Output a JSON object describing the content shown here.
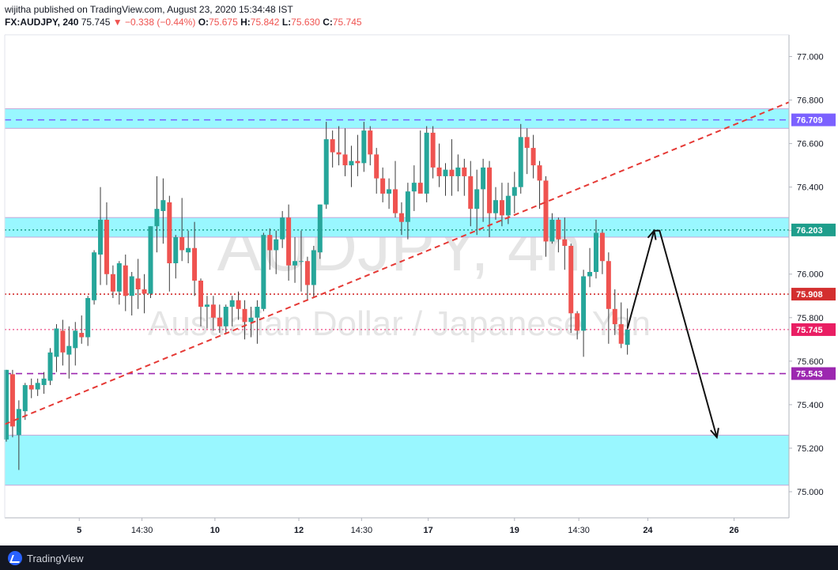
{
  "header": {
    "line1": "wijitha published on TradingView.com, August 23, 2020 15:34:48 IST",
    "symbol": "FX:AUDJPY, 240",
    "last": "75.745",
    "change": "▼ −0.338 (−0.44%)",
    "o_label": "O:",
    "o_value": "75.675",
    "h_label": "H:",
    "h_value": "75.842",
    "l_label": "L:",
    "l_value": "75.630",
    "c_label": "C:",
    "c_value": "75.745"
  },
  "watermark": {
    "symbol": "AUDJPY, 4h",
    "description": "Australian Dollar / Japanese Yen"
  },
  "footer": {
    "brand": "TradingView"
  },
  "colors": {
    "up": "#26a69a",
    "down": "#ef5350",
    "zone": "#99f7ff",
    "purple": "#9c27b0",
    "red_line": "#e53935"
  },
  "chart_data": {
    "type": "candlestick",
    "symbol": "FX:AUDJPY",
    "timeframe": "4h",
    "ylim": [
      74.88,
      77.1
    ],
    "y_ticks": [
      "77.000",
      "76.800",
      "76.600",
      "76.400",
      "76.200",
      "76.000",
      "75.800",
      "75.600",
      "75.400",
      "75.200",
      "75.000"
    ],
    "x_ticks": [
      "5",
      "14:30",
      "10",
      "12",
      "14:30",
      "17",
      "19",
      "14:30",
      "24",
      "26"
    ],
    "x_range": [
      0,
      100
    ],
    "x_tick_positions": [
      9.5,
      17.5,
      26.8,
      37.5,
      45.5,
      54.0,
      65.0,
      73.2,
      82.0,
      93.0
    ],
    "candles": [
      {
        "x": 0.2,
        "o": 75.24,
        "h": 75.56,
        "l": 75.23,
        "c": 75.56
      },
      {
        "x": 1.0,
        "o": 75.54,
        "h": 75.56,
        "l": 75.25,
        "c": 75.3
      },
      {
        "x": 1.8,
        "o": 75.26,
        "h": 75.42,
        "l": 75.1,
        "c": 75.38
      },
      {
        "x": 2.6,
        "o": 75.37,
        "h": 75.5,
        "l": 75.33,
        "c": 75.49
      },
      {
        "x": 3.4,
        "o": 75.49,
        "h": 75.52,
        "l": 75.43,
        "c": 75.47
      },
      {
        "x": 4.2,
        "o": 75.47,
        "h": 75.52,
        "l": 75.44,
        "c": 75.5
      },
      {
        "x": 5.0,
        "o": 75.49,
        "h": 75.55,
        "l": 75.45,
        "c": 75.52
      },
      {
        "x": 5.8,
        "o": 75.51,
        "h": 75.66,
        "l": 75.49,
        "c": 75.64
      },
      {
        "x": 6.6,
        "o": 75.62,
        "h": 75.77,
        "l": 75.55,
        "c": 75.75
      },
      {
        "x": 7.4,
        "o": 75.74,
        "h": 75.79,
        "l": 75.58,
        "c": 75.64
      },
      {
        "x": 8.2,
        "o": 75.63,
        "h": 75.76,
        "l": 75.52,
        "c": 75.67
      },
      {
        "x": 9.0,
        "o": 75.66,
        "h": 75.78,
        "l": 75.58,
        "c": 75.74
      },
      {
        "x": 9.8,
        "o": 75.73,
        "h": 75.81,
        "l": 75.68,
        "c": 75.71
      },
      {
        "x": 10.6,
        "o": 75.71,
        "h": 75.9,
        "l": 75.67,
        "c": 75.89
      },
      {
        "x": 11.4,
        "o": 75.88,
        "h": 76.11,
        "l": 75.86,
        "c": 76.1
      },
      {
        "x": 12.2,
        "o": 76.09,
        "h": 76.4,
        "l": 75.95,
        "c": 76.25
      },
      {
        "x": 13.0,
        "o": 76.25,
        "h": 76.33,
        "l": 75.95,
        "c": 76.0
      },
      {
        "x": 13.8,
        "o": 76.0,
        "h": 76.04,
        "l": 75.89,
        "c": 75.92
      },
      {
        "x": 14.6,
        "o": 75.92,
        "h": 76.06,
        "l": 75.86,
        "c": 76.05
      },
      {
        "x": 15.4,
        "o": 76.04,
        "h": 76.09,
        "l": 75.83,
        "c": 75.9
      },
      {
        "x": 16.2,
        "o": 75.9,
        "h": 76.01,
        "l": 75.81,
        "c": 75.99
      },
      {
        "x": 17.0,
        "o": 75.98,
        "h": 76.07,
        "l": 75.84,
        "c": 75.93
      },
      {
        "x": 17.8,
        "o": 75.93,
        "h": 76.0,
        "l": 75.82,
        "c": 75.91
      },
      {
        "x": 18.6,
        "o": 75.91,
        "h": 76.22,
        "l": 75.89,
        "c": 76.22
      },
      {
        "x": 19.4,
        "o": 76.22,
        "h": 76.45,
        "l": 76.1,
        "c": 76.3
      },
      {
        "x": 20.2,
        "o": 76.29,
        "h": 76.44,
        "l": 76.14,
        "c": 76.34
      },
      {
        "x": 21.0,
        "o": 76.33,
        "h": 76.36,
        "l": 75.92,
        "c": 76.05
      },
      {
        "x": 21.8,
        "o": 76.05,
        "h": 76.18,
        "l": 75.98,
        "c": 76.17
      },
      {
        "x": 22.6,
        "o": 76.17,
        "h": 76.35,
        "l": 76.06,
        "c": 76.11
      },
      {
        "x": 23.4,
        "o": 76.1,
        "h": 76.2,
        "l": 76.05,
        "c": 76.12
      },
      {
        "x": 24.2,
        "o": 76.12,
        "h": 76.24,
        "l": 75.9,
        "c": 75.97
      },
      {
        "x": 25.0,
        "o": 75.97,
        "h": 75.98,
        "l": 75.76,
        "c": 75.85
      },
      {
        "x": 25.8,
        "o": 75.85,
        "h": 75.9,
        "l": 75.75,
        "c": 75.86
      },
      {
        "x": 26.6,
        "o": 75.86,
        "h": 75.9,
        "l": 75.74,
        "c": 75.8
      },
      {
        "x": 27.4,
        "o": 75.8,
        "h": 75.86,
        "l": 75.73,
        "c": 75.76
      },
      {
        "x": 28.2,
        "o": 75.76,
        "h": 75.86,
        "l": 75.73,
        "c": 75.85
      },
      {
        "x": 29.0,
        "o": 75.85,
        "h": 75.9,
        "l": 75.76,
        "c": 75.88
      },
      {
        "x": 29.8,
        "o": 75.88,
        "h": 75.92,
        "l": 75.79,
        "c": 75.84
      },
      {
        "x": 30.6,
        "o": 75.84,
        "h": 75.88,
        "l": 75.7,
        "c": 75.78
      },
      {
        "x": 31.4,
        "o": 75.78,
        "h": 75.85,
        "l": 75.71,
        "c": 75.8
      },
      {
        "x": 32.2,
        "o": 75.8,
        "h": 75.88,
        "l": 75.68,
        "c": 75.85
      },
      {
        "x": 33.0,
        "o": 75.84,
        "h": 76.19,
        "l": 75.83,
        "c": 76.18
      },
      {
        "x": 33.8,
        "o": 76.18,
        "h": 76.21,
        "l": 76.02,
        "c": 76.11
      },
      {
        "x": 34.6,
        "o": 76.11,
        "h": 76.2,
        "l": 76.0,
        "c": 76.16
      },
      {
        "x": 35.4,
        "o": 76.16,
        "h": 76.29,
        "l": 76.12,
        "c": 76.26
      },
      {
        "x": 36.2,
        "o": 76.26,
        "h": 76.32,
        "l": 75.97,
        "c": 76.04
      },
      {
        "x": 37.0,
        "o": 76.04,
        "h": 76.17,
        "l": 75.96,
        "c": 76.06
      },
      {
        "x": 37.8,
        "o": 76.06,
        "h": 76.2,
        "l": 75.92,
        "c": 76.06
      },
      {
        "x": 38.6,
        "o": 76.06,
        "h": 76.08,
        "l": 75.88,
        "c": 75.95
      },
      {
        "x": 39.4,
        "o": 75.95,
        "h": 76.13,
        "l": 75.89,
        "c": 76.11
      },
      {
        "x": 40.2,
        "o": 76.1,
        "h": 76.32,
        "l": 76.07,
        "c": 76.32
      },
      {
        "x": 41.0,
        "o": 76.32,
        "h": 76.7,
        "l": 76.3,
        "c": 76.62
      },
      {
        "x": 41.8,
        "o": 76.62,
        "h": 76.66,
        "l": 76.49,
        "c": 76.56
      },
      {
        "x": 42.6,
        "o": 76.56,
        "h": 76.68,
        "l": 76.5,
        "c": 76.55
      },
      {
        "x": 43.4,
        "o": 76.55,
        "h": 76.67,
        "l": 76.45,
        "c": 76.5
      },
      {
        "x": 44.2,
        "o": 76.5,
        "h": 76.59,
        "l": 76.4,
        "c": 76.52
      },
      {
        "x": 45.0,
        "o": 76.52,
        "h": 76.64,
        "l": 76.45,
        "c": 76.51
      },
      {
        "x": 45.8,
        "o": 76.51,
        "h": 76.7,
        "l": 76.47,
        "c": 76.66
      },
      {
        "x": 46.6,
        "o": 76.66,
        "h": 76.68,
        "l": 76.5,
        "c": 76.55
      },
      {
        "x": 47.4,
        "o": 76.55,
        "h": 76.58,
        "l": 76.37,
        "c": 76.44
      },
      {
        "x": 48.2,
        "o": 76.44,
        "h": 76.49,
        "l": 76.33,
        "c": 76.37
      },
      {
        "x": 49.0,
        "o": 76.37,
        "h": 76.44,
        "l": 76.3,
        "c": 76.39
      },
      {
        "x": 49.8,
        "o": 76.39,
        "h": 76.52,
        "l": 76.26,
        "c": 76.28
      },
      {
        "x": 50.6,
        "o": 76.28,
        "h": 76.33,
        "l": 76.18,
        "c": 76.24
      },
      {
        "x": 51.4,
        "o": 76.24,
        "h": 76.42,
        "l": 76.16,
        "c": 76.38
      },
      {
        "x": 52.2,
        "o": 76.38,
        "h": 76.5,
        "l": 76.29,
        "c": 76.42
      },
      {
        "x": 53.0,
        "o": 76.42,
        "h": 76.66,
        "l": 76.38,
        "c": 76.37
      },
      {
        "x": 53.8,
        "o": 76.37,
        "h": 76.68,
        "l": 76.33,
        "c": 76.65
      },
      {
        "x": 54.6,
        "o": 76.65,
        "h": 76.68,
        "l": 76.44,
        "c": 76.49
      },
      {
        "x": 55.4,
        "o": 76.49,
        "h": 76.6,
        "l": 76.4,
        "c": 76.45
      },
      {
        "x": 56.2,
        "o": 76.45,
        "h": 76.51,
        "l": 76.36,
        "c": 76.48
      },
      {
        "x": 57.0,
        "o": 76.48,
        "h": 76.62,
        "l": 76.36,
        "c": 76.45
      },
      {
        "x": 57.8,
        "o": 76.45,
        "h": 76.55,
        "l": 76.38,
        "c": 76.49
      },
      {
        "x": 58.6,
        "o": 76.49,
        "h": 76.53,
        "l": 76.36,
        "c": 76.45
      },
      {
        "x": 59.4,
        "o": 76.45,
        "h": 76.52,
        "l": 76.22,
        "c": 76.3
      },
      {
        "x": 60.2,
        "o": 76.3,
        "h": 76.48,
        "l": 76.18,
        "c": 76.39
      },
      {
        "x": 61.0,
        "o": 76.39,
        "h": 76.53,
        "l": 76.24,
        "c": 76.49
      },
      {
        "x": 61.8,
        "o": 76.49,
        "h": 76.52,
        "l": 76.17,
        "c": 76.28
      },
      {
        "x": 62.6,
        "o": 76.28,
        "h": 76.4,
        "l": 76.25,
        "c": 76.34
      },
      {
        "x": 63.4,
        "o": 76.34,
        "h": 76.42,
        "l": 76.22,
        "c": 76.27
      },
      {
        "x": 64.2,
        "o": 76.27,
        "h": 76.42,
        "l": 76.23,
        "c": 76.36
      },
      {
        "x": 65.0,
        "o": 76.36,
        "h": 76.47,
        "l": 76.28,
        "c": 76.4
      },
      {
        "x": 65.8,
        "o": 76.4,
        "h": 76.69,
        "l": 76.37,
        "c": 76.63
      },
      {
        "x": 66.6,
        "o": 76.63,
        "h": 76.67,
        "l": 76.46,
        "c": 76.58
      },
      {
        "x": 67.4,
        "o": 76.58,
        "h": 76.64,
        "l": 76.44,
        "c": 76.5
      },
      {
        "x": 68.2,
        "o": 76.5,
        "h": 76.52,
        "l": 76.3,
        "c": 76.43
      },
      {
        "x": 69.0,
        "o": 76.43,
        "h": 76.45,
        "l": 76.08,
        "c": 76.15
      },
      {
        "x": 69.8,
        "o": 76.15,
        "h": 76.28,
        "l": 76.14,
        "c": 76.25
      },
      {
        "x": 70.6,
        "o": 76.25,
        "h": 76.26,
        "l": 76.1,
        "c": 76.16
      },
      {
        "x": 71.4,
        "o": 76.16,
        "h": 76.26,
        "l": 76.02,
        "c": 76.13
      },
      {
        "x": 72.2,
        "o": 76.13,
        "h": 76.14,
        "l": 75.73,
        "c": 75.82
      },
      {
        "x": 73.0,
        "o": 75.82,
        "h": 75.83,
        "l": 75.7,
        "c": 75.74
      },
      {
        "x": 73.8,
        "o": 75.74,
        "h": 76.02,
        "l": 75.62,
        "c": 75.99
      },
      {
        "x": 74.6,
        "o": 75.99,
        "h": 76.12,
        "l": 75.94,
        "c": 76.01
      },
      {
        "x": 75.4,
        "o": 76.01,
        "h": 76.25,
        "l": 75.98,
        "c": 76.19
      },
      {
        "x": 76.2,
        "o": 76.19,
        "h": 76.2,
        "l": 76.0,
        "c": 76.06
      },
      {
        "x": 77.0,
        "o": 76.06,
        "h": 76.1,
        "l": 75.68,
        "c": 75.84
      },
      {
        "x": 77.8,
        "o": 75.84,
        "h": 75.93,
        "l": 75.72,
        "c": 75.77
      },
      {
        "x": 78.6,
        "o": 75.77,
        "h": 75.87,
        "l": 75.66,
        "c": 75.68
      },
      {
        "x": 79.4,
        "o": 75.675,
        "h": 75.842,
        "l": 75.63,
        "c": 75.745
      }
    ],
    "zones": [
      {
        "from": 76.67,
        "to": 76.76
      },
      {
        "from": 76.17,
        "to": 76.26
      },
      {
        "from": 75.03,
        "to": 75.26
      }
    ],
    "levels": [
      {
        "value": 76.709,
        "label": "76.709",
        "style": "dashed",
        "color": "#7b61ff"
      },
      {
        "value": 76.203,
        "label": "76.203",
        "style": "dotted",
        "color": "#1e9e8c"
      },
      {
        "value": 75.908,
        "label": "75.908",
        "style": "dotted",
        "color": "#d32f2f"
      },
      {
        "value": 75.745,
        "label": "75.745",
        "style": "dotted",
        "color": "#e91e63"
      },
      {
        "value": 75.543,
        "label": "75.543",
        "style": "dashed",
        "color": "#9c27b0"
      }
    ],
    "trendline": {
      "x1": 0,
      "y1": 75.31,
      "x2": 100,
      "y2": 76.79
    },
    "projection": [
      {
        "x": 79.4,
        "y": 75.75
      },
      {
        "x": 82.8,
        "y": 76.2
      },
      {
        "x": 83.5,
        "y": 76.2
      },
      {
        "x": 90.8,
        "y": 75.25
      }
    ]
  }
}
